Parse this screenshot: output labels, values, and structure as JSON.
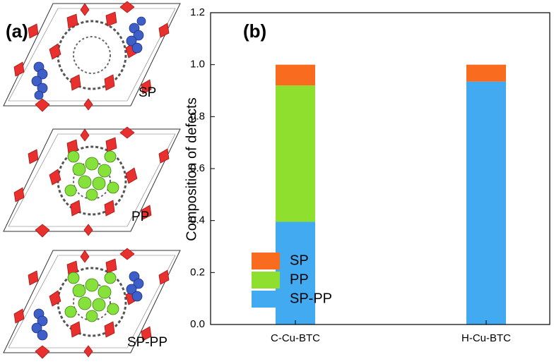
{
  "panel_a": {
    "label": "(a)",
    "structures": [
      "SP",
      "PP",
      "SP-PP"
    ]
  },
  "chart_data": {
    "type": "bar",
    "stacked": true,
    "panel_label": "(b)",
    "y_label": "Composition of defects",
    "categories": [
      "C-Cu-BTC",
      "H-Cu-BTC"
    ],
    "series": [
      {
        "name": "SP-PP",
        "color": "#41aaf0",
        "values": [
          0.395,
          0.935
        ]
      },
      {
        "name": "PP",
        "color": "#8fe02e",
        "values": [
          0.525,
          0
        ]
      },
      {
        "name": "SP",
        "color": "#f96b1f",
        "values": [
          0.08,
          0.065
        ]
      }
    ],
    "ylim": [
      0,
      1.2
    ],
    "yticks": [
      {
        "value": 0,
        "label": "0.0"
      },
      0.2,
      0.4,
      0.6,
      0.8,
      {
        "value": 1,
        "label": "1.0"
      },
      1.2
    ],
    "legend": "lower-left"
  }
}
